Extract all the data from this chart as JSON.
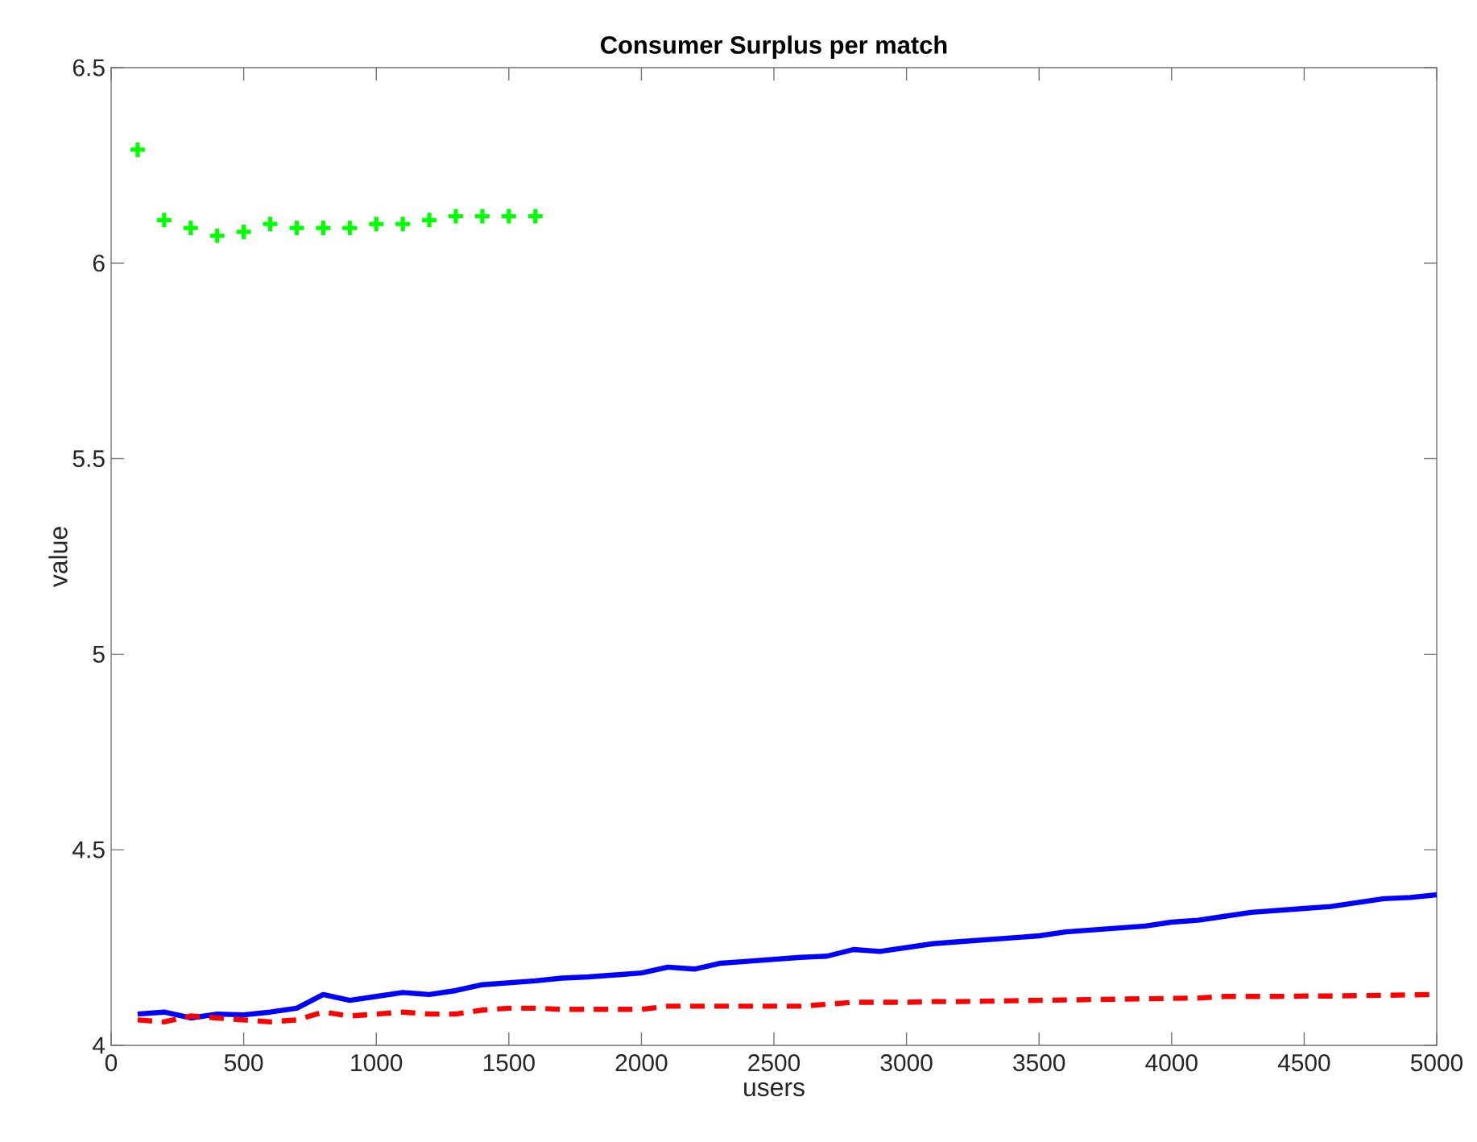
{
  "chart_data": {
    "type": "line",
    "title": "Consumer Surplus per match",
    "xlabel": "users",
    "ylabel": "value",
    "xlim": [
      0,
      5000
    ],
    "ylim": [
      4,
      6.5
    ],
    "xticks": [
      0,
      500,
      1000,
      1500,
      2000,
      2500,
      3000,
      3500,
      4000,
      4500,
      5000
    ],
    "yticks": [
      4,
      4.5,
      5,
      5.5,
      6,
      6.5
    ],
    "grid": false,
    "x": [
      100,
      200,
      300,
      400,
      500,
      600,
      700,
      800,
      900,
      1000,
      1100,
      1200,
      1300,
      1400,
      1500,
      1600,
      1700,
      1800,
      1900,
      2000,
      2100,
      2200,
      2300,
      2400,
      2500,
      2600,
      2700,
      2800,
      2900,
      3000,
      3100,
      3200,
      3300,
      3400,
      3500,
      3600,
      3700,
      3800,
      3900,
      4000,
      4100,
      4200,
      4300,
      4400,
      4500,
      4600,
      4700,
      4800,
      4900,
      5000
    ],
    "series": [
      {
        "type": "scatter",
        "marker": "cross",
        "color": "#00ff00",
        "x": [
          100,
          200,
          300,
          400,
          500,
          600,
          700,
          800,
          900,
          1000,
          1100,
          1200,
          1300,
          1400,
          1500,
          1600
        ],
        "values": [
          6.29,
          6.11,
          6.09,
          6.07,
          6.08,
          6.1,
          6.09,
          6.09,
          6.09,
          6.1,
          6.1,
          6.11,
          6.12,
          6.12,
          6.12,
          6.12
        ]
      },
      {
        "line_style": "solid",
        "color": "#0000ff",
        "values": [
          4.08,
          4.085,
          4.07,
          4.08,
          4.078,
          4.085,
          4.095,
          4.13,
          4.115,
          4.125,
          4.135,
          4.13,
          4.14,
          4.155,
          4.16,
          4.165,
          4.172,
          4.175,
          4.18,
          4.185,
          4.2,
          4.195,
          4.21,
          4.215,
          4.22,
          4.225,
          4.228,
          4.245,
          4.24,
          4.25,
          4.26,
          4.265,
          4.27,
          4.275,
          4.28,
          4.29,
          4.295,
          4.3,
          4.305,
          4.315,
          4.32,
          4.33,
          4.34,
          4.345,
          4.35,
          4.355,
          4.365,
          4.375,
          4.378,
          4.385
        ]
      },
      {
        "line_style": "dashed",
        "color": "#ff0000",
        "values": [
          4.065,
          4.06,
          4.075,
          4.07,
          4.065,
          4.06,
          4.065,
          4.085,
          4.075,
          4.08,
          4.085,
          4.08,
          4.08,
          4.09,
          4.095,
          4.095,
          4.092,
          4.092,
          4.092,
          4.092,
          4.1,
          4.1,
          4.1,
          4.1,
          4.1,
          4.1,
          4.105,
          4.11,
          4.11,
          4.11,
          4.112,
          4.112,
          4.113,
          4.114,
          4.115,
          4.116,
          4.117,
          4.118,
          4.119,
          4.12,
          4.121,
          4.125,
          4.125,
          4.125,
          4.126,
          4.126,
          4.127,
          4.128,
          4.129,
          4.13
        ]
      }
    ]
  }
}
